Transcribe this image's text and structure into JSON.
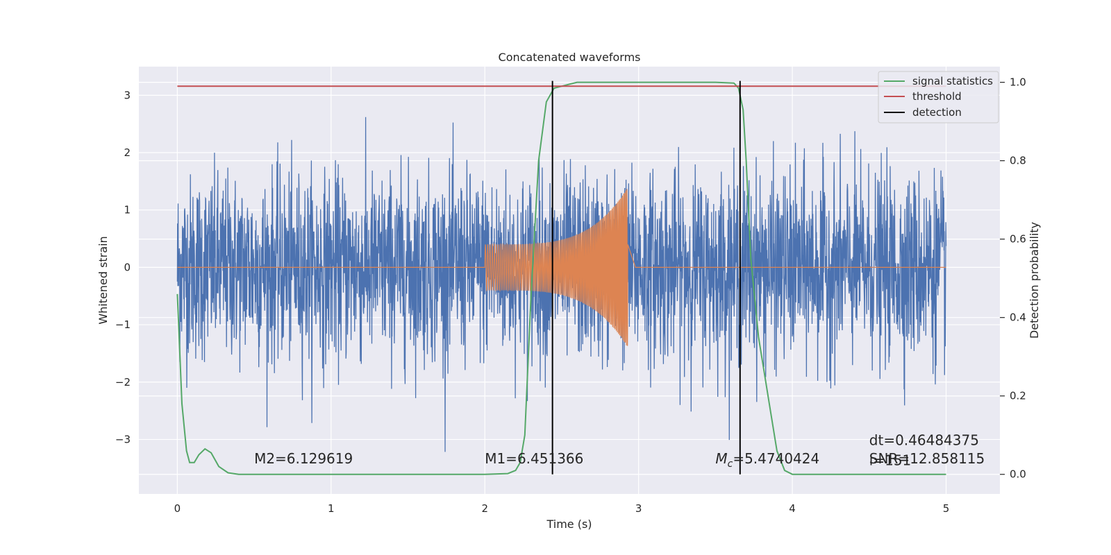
{
  "chart_data": {
    "type": "line",
    "title": "Concatenated waveforms",
    "xlabel": "Time (s)",
    "ylabel": "Whitened strain",
    "y2label": "Detection probability",
    "xlim": [
      -0.25,
      5.35
    ],
    "ylim": [
      -3.95,
      3.5
    ],
    "y2lim": [
      -0.05,
      1.04
    ],
    "x_ticks": [
      0,
      1,
      2,
      3,
      4,
      5
    ],
    "y_ticks": [
      -3,
      -2,
      -1,
      0,
      1,
      2,
      3
    ],
    "y2_ticks": [
      0.0,
      0.2,
      0.4,
      0.6,
      0.8,
      1.0
    ],
    "x_tick_labels": [
      "0",
      "1",
      "2",
      "3",
      "4",
      "5"
    ],
    "y_tick_labels": [
      "−3",
      "−2",
      "−1",
      "0",
      "1",
      "2",
      "3"
    ],
    "y2_tick_labels": [
      "0.0",
      "0.2",
      "0.4",
      "0.6",
      "0.8",
      "1.0"
    ],
    "grid": true,
    "legend_position": "top-right",
    "colors": {
      "plot_background": "#eaeaf2",
      "noise": "#4c72b0",
      "template": "#dd8452",
      "signal_statistics": "#55a868",
      "threshold": "#c44e52",
      "detection": "#000000"
    },
    "series": [
      {
        "name": "signal statistics",
        "axis": "right",
        "color": "#55a868",
        "x": [
          0.0,
          0.03,
          0.06,
          0.08,
          0.11,
          0.14,
          0.18,
          0.22,
          0.27,
          0.33,
          0.4,
          1.0,
          2.0,
          2.15,
          2.2,
          2.23,
          2.26,
          2.3,
          2.35,
          2.4,
          2.45,
          2.5,
          2.55,
          2.6,
          3.0,
          3.5,
          3.62,
          3.65,
          3.68,
          3.7,
          3.73,
          3.78,
          3.85,
          3.9,
          3.95,
          4.0,
          5.0
        ],
        "values": [
          0.46,
          0.18,
          0.06,
          0.03,
          0.03,
          0.05,
          0.065,
          0.055,
          0.02,
          0.004,
          0.0,
          0.0,
          0.0,
          0.002,
          0.01,
          0.03,
          0.1,
          0.45,
          0.8,
          0.95,
          0.985,
          0.99,
          0.995,
          1.0,
          1.0,
          1.0,
          0.998,
          0.985,
          0.93,
          0.8,
          0.55,
          0.35,
          0.18,
          0.06,
          0.01,
          0.0,
          0.0
        ]
      },
      {
        "name": "threshold",
        "axis": "right",
        "color": "#c44e52",
        "x": [
          0,
          5
        ],
        "values": [
          0.99,
          0.99
        ]
      },
      {
        "name": "detection",
        "axis": "right",
        "color": "#000000",
        "x": [
          2.44,
          3.66
        ],
        "range": [
          0.0,
          1.0
        ]
      }
    ],
    "noise": {
      "x_range": [
        0,
        5
      ],
      "std": 0.8,
      "color": "#4c72b0"
    },
    "template": {
      "x_range": [
        2.0,
        2.93
      ],
      "start_amplitude": 0.4,
      "peak_amplitude": 1.4,
      "color": "#dd8452"
    },
    "annotations": [
      {
        "text": "M2=6.129619",
        "x": 0.5,
        "y": -3.42
      },
      {
        "text": "M1=6.451366",
        "x": 2.0,
        "y": -3.42
      },
      {
        "text": "=5.4740424",
        "math": "M_c",
        "x": 3.5,
        "y": -3.42
      },
      {
        "text": "dt=0.46484375",
        "x": 4.5,
        "y": -3.1
      },
      {
        "text": " i=151",
        "x": 4.5,
        "y": -3.45
      },
      {
        "text": "SNR=12.858115",
        "x": 4.5,
        "y": -3.42
      }
    ],
    "legend": [
      "signal statistics",
      "threshold",
      "detection"
    ]
  }
}
